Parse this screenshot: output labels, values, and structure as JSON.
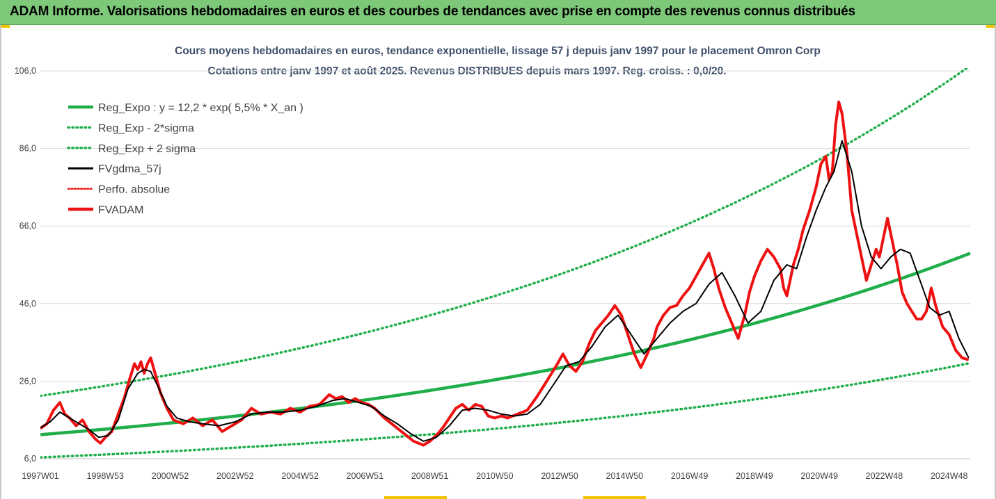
{
  "header": {
    "title": "ADAM Informe. Valorisations hebdomadaires en euros et des courbes de tendances avec prise en compte des revenus connus distribués"
  },
  "colors": {
    "header_bg": "#7ec87a",
    "green": "#1fae4a",
    "black": "#000000",
    "red": "#ee1111",
    "accent": "#f2c200"
  },
  "chart_data": {
    "type": "line",
    "title": "Cours moyens hebdomadaires en euros, tendance exponentielle, lissage 57 j depuis janv 1997 pour le placement Omron Corp",
    "subtitle": "Cotations entre janv 1997 et août 2025. Revenus DISTRIBUES depuis mars 1997. Reg. croiss. : 0,0/20.",
    "ylim": [
      6,
      106
    ],
    "yticks": [
      "106,0",
      "86,0",
      "66,0",
      "46,0",
      "26,0",
      "6,0"
    ],
    "ytick_values": [
      106,
      86,
      66,
      46,
      26,
      6
    ],
    "xlim": [
      1997.0,
      2025.65
    ],
    "xticks": [
      "1997W01",
      "1998W53",
      "2000W52",
      "2002W52",
      "2004W52",
      "2006W51",
      "2008W51",
      "2010W50",
      "2012W50",
      "2014W50",
      "2016W49",
      "2018W49",
      "2020W49",
      "2022W48",
      "2024W48"
    ],
    "xtick_values": [
      1997.0,
      1999.0,
      2001.0,
      2003.0,
      2005.0,
      2007.0,
      2009.0,
      2011.0,
      2013.0,
      2015.0,
      2017.0,
      2019.0,
      2021.0,
      2023.0,
      2025.0
    ],
    "grid": "horizontal",
    "legend_position": "top-left",
    "legend": [
      {
        "label": "Reg_Expo : y = 12,2 * exp( 5,5% *  X_an )",
        "color": "#1fae4a",
        "style": "solid-thick"
      },
      {
        "label": "Reg_Exp - 2*sigma",
        "color": "#1fae4a",
        "style": "dotted"
      },
      {
        "label": "Reg_Exp + 2 sigma",
        "color": "#1fae4a",
        "style": "dotted"
      },
      {
        "label": "FVgdma_57j",
        "color": "#000000",
        "style": "solid"
      },
      {
        "label": "Perfo. absolue",
        "color": "#ee1111",
        "style": "dotted"
      },
      {
        "label": "FVADAM",
        "color": "#ee1111",
        "style": "solid-thick"
      }
    ],
    "regression": {
      "a": 12.2,
      "rate": 0.055,
      "x0": 1997.0,
      "lower_factor": 0.52,
      "upper_factor": 1.82
    },
    "series": [
      {
        "name": "FVADAM",
        "x": [
          1997.0,
          1997.2,
          1997.4,
          1997.6,
          1997.75,
          1997.9,
          1998.1,
          1998.3,
          1998.5,
          1998.7,
          1998.85,
          1999.0,
          1999.2,
          1999.4,
          1999.6,
          1999.75,
          1999.9,
          2000.0,
          2000.1,
          2000.2,
          2000.3,
          2000.4,
          2000.5,
          2000.7,
          2000.9,
          2001.1,
          2001.4,
          2001.7,
          2002.0,
          2002.3,
          2002.6,
          2002.9,
          2003.2,
          2003.5,
          2003.8,
          2004.1,
          2004.4,
          2004.7,
          2005.0,
          2005.3,
          2005.6,
          2005.9,
          2006.1,
          2006.3,
          2006.5,
          2006.7,
          2006.9,
          2007.1,
          2007.3,
          2007.6,
          2007.9,
          2008.2,
          2008.5,
          2008.8,
          2009.0,
          2009.2,
          2009.4,
          2009.6,
          2009.8,
          2010.0,
          2010.2,
          2010.4,
          2010.6,
          2010.8,
          2011.0,
          2011.2,
          2011.4,
          2011.7,
          2012.0,
          2012.3,
          2012.6,
          2012.9,
          2013.1,
          2013.3,
          2013.5,
          2013.7,
          2013.9,
          2014.1,
          2014.3,
          2014.5,
          2014.7,
          2014.9,
          2015.1,
          2015.3,
          2015.5,
          2015.7,
          2015.9,
          2016.0,
          2016.2,
          2016.4,
          2016.6,
          2016.8,
          2017.0,
          2017.2,
          2017.4,
          2017.6,
          2017.75,
          2017.9,
          2018.1,
          2018.3,
          2018.5,
          2018.7,
          2018.85,
          2019.0,
          2019.2,
          2019.4,
          2019.6,
          2019.8,
          2019.9,
          2020.0,
          2020.1,
          2020.2,
          2020.35,
          2020.5,
          2020.7,
          2020.9,
          2021.05,
          2021.2,
          2021.3,
          2021.4,
          2021.5,
          2021.6,
          2021.7,
          2021.85,
          2022.0,
          2022.15,
          2022.3,
          2022.45,
          2022.6,
          2022.75,
          2022.85,
          2022.95,
          2023.1,
          2023.25,
          2023.4,
          2023.55,
          2023.7,
          2023.85,
          2024.0,
          2024.15,
          2024.3,
          2024.45,
          2024.6,
          2024.8,
          2025.0,
          2025.2,
          2025.4,
          2025.6
        ],
        "values": [
          13.8,
          15.0,
          18.5,
          20.5,
          17.5,
          16.5,
          14.5,
          16.0,
          13.0,
          11.0,
          10.0,
          11.5,
          13.0,
          17.5,
          22.0,
          26.5,
          30.5,
          29.0,
          31.0,
          28.0,
          30.5,
          32.0,
          29.0,
          23.0,
          19.0,
          16.0,
          15.0,
          16.5,
          14.5,
          16.0,
          13.0,
          14.5,
          16.0,
          19.0,
          17.5,
          18.0,
          17.5,
          19.0,
          18.0,
          19.5,
          20.0,
          22.5,
          21.5,
          22.0,
          20.5,
          21.5,
          20.5,
          20.0,
          19.0,
          16.5,
          14.5,
          12.5,
          10.5,
          9.5,
          10.5,
          12.0,
          14.0,
          16.5,
          19.0,
          20.0,
          18.5,
          20.0,
          19.5,
          17.0,
          16.5,
          17.0,
          16.5,
          17.5,
          18.5,
          22.0,
          26.0,
          30.0,
          33.0,
          30.0,
          28.5,
          31.0,
          35.5,
          39.0,
          41.0,
          43.0,
          45.5,
          43.0,
          38.0,
          33.0,
          29.5,
          33.0,
          37.0,
          40.0,
          43.0,
          45.0,
          45.5,
          48.0,
          50.0,
          53.0,
          56.0,
          59.0,
          55.0,
          50.0,
          45.0,
          41.0,
          37.0,
          43.0,
          49.0,
          53.0,
          57.0,
          60.0,
          58.0,
          55.0,
          50.0,
          48.0,
          52.0,
          56.0,
          60.0,
          65.0,
          70.0,
          76.0,
          82.0,
          84.0,
          78.0,
          80.0,
          92.0,
          98.0,
          95.0,
          85.0,
          70.0,
          64.0,
          58.0,
          52.0,
          56.0,
          60.0,
          58.0,
          62.0,
          68.0,
          62.0,
          56.0,
          49.0,
          46.0,
          44.0,
          42.0,
          42.0,
          44.0,
          50.0,
          45.0,
          40.0,
          38.0,
          34.0,
          32.0,
          31.5
        ]
      },
      {
        "name": "FVgdma_57j",
        "x": [
          1997.0,
          1997.3,
          1997.6,
          1997.9,
          1998.2,
          1998.5,
          1998.8,
          1999.1,
          1999.4,
          1999.7,
          2000.0,
          2000.2,
          2000.4,
          2000.6,
          2000.9,
          2001.2,
          2001.6,
          2002.0,
          2002.5,
          2003.0,
          2003.5,
          2004.0,
          2004.5,
          2005.0,
          2005.5,
          2006.0,
          2006.4,
          2006.8,
          2007.2,
          2007.6,
          2008.0,
          2008.4,
          2008.8,
          2009.2,
          2009.6,
          2010.0,
          2010.4,
          2010.8,
          2011.2,
          2011.6,
          2012.0,
          2012.4,
          2012.8,
          2013.2,
          2013.6,
          2014.0,
          2014.4,
          2014.8,
          2015.2,
          2015.6,
          2016.0,
          2016.4,
          2016.8,
          2017.2,
          2017.6,
          2018.0,
          2018.4,
          2018.8,
          2019.2,
          2019.6,
          2020.0,
          2020.3,
          2020.6,
          2020.9,
          2021.2,
          2021.45,
          2021.7,
          2022.0,
          2022.3,
          2022.6,
          2022.9,
          2023.2,
          2023.5,
          2023.8,
          2024.1,
          2024.4,
          2024.7,
          2025.0,
          2025.3,
          2025.6
        ],
        "values": [
          14.0,
          15.5,
          18.0,
          16.5,
          15.0,
          13.5,
          11.5,
          12.0,
          16.0,
          24.0,
          28.0,
          29.0,
          28.5,
          25.0,
          19.5,
          16.5,
          15.5,
          15.0,
          14.5,
          15.5,
          17.5,
          18.0,
          18.0,
          18.5,
          19.5,
          21.0,
          21.5,
          20.5,
          19.5,
          17.0,
          15.0,
          12.5,
          10.5,
          11.5,
          14.5,
          18.5,
          19.0,
          18.5,
          17.5,
          17.0,
          17.5,
          20.0,
          25.0,
          30.0,
          31.0,
          35.0,
          40.0,
          43.0,
          38.0,
          33.0,
          37.0,
          41.0,
          44.0,
          46.0,
          51.0,
          54.0,
          48.0,
          41.0,
          44.0,
          52.0,
          56.0,
          55.0,
          63.0,
          70.0,
          76.0,
          80.0,
          88.0,
          80.0,
          66.0,
          58.0,
          55.0,
          58.0,
          60.0,
          59.0,
          52.0,
          45.0,
          43.0,
          44.0,
          37.0,
          32.0
        ]
      }
    ]
  }
}
